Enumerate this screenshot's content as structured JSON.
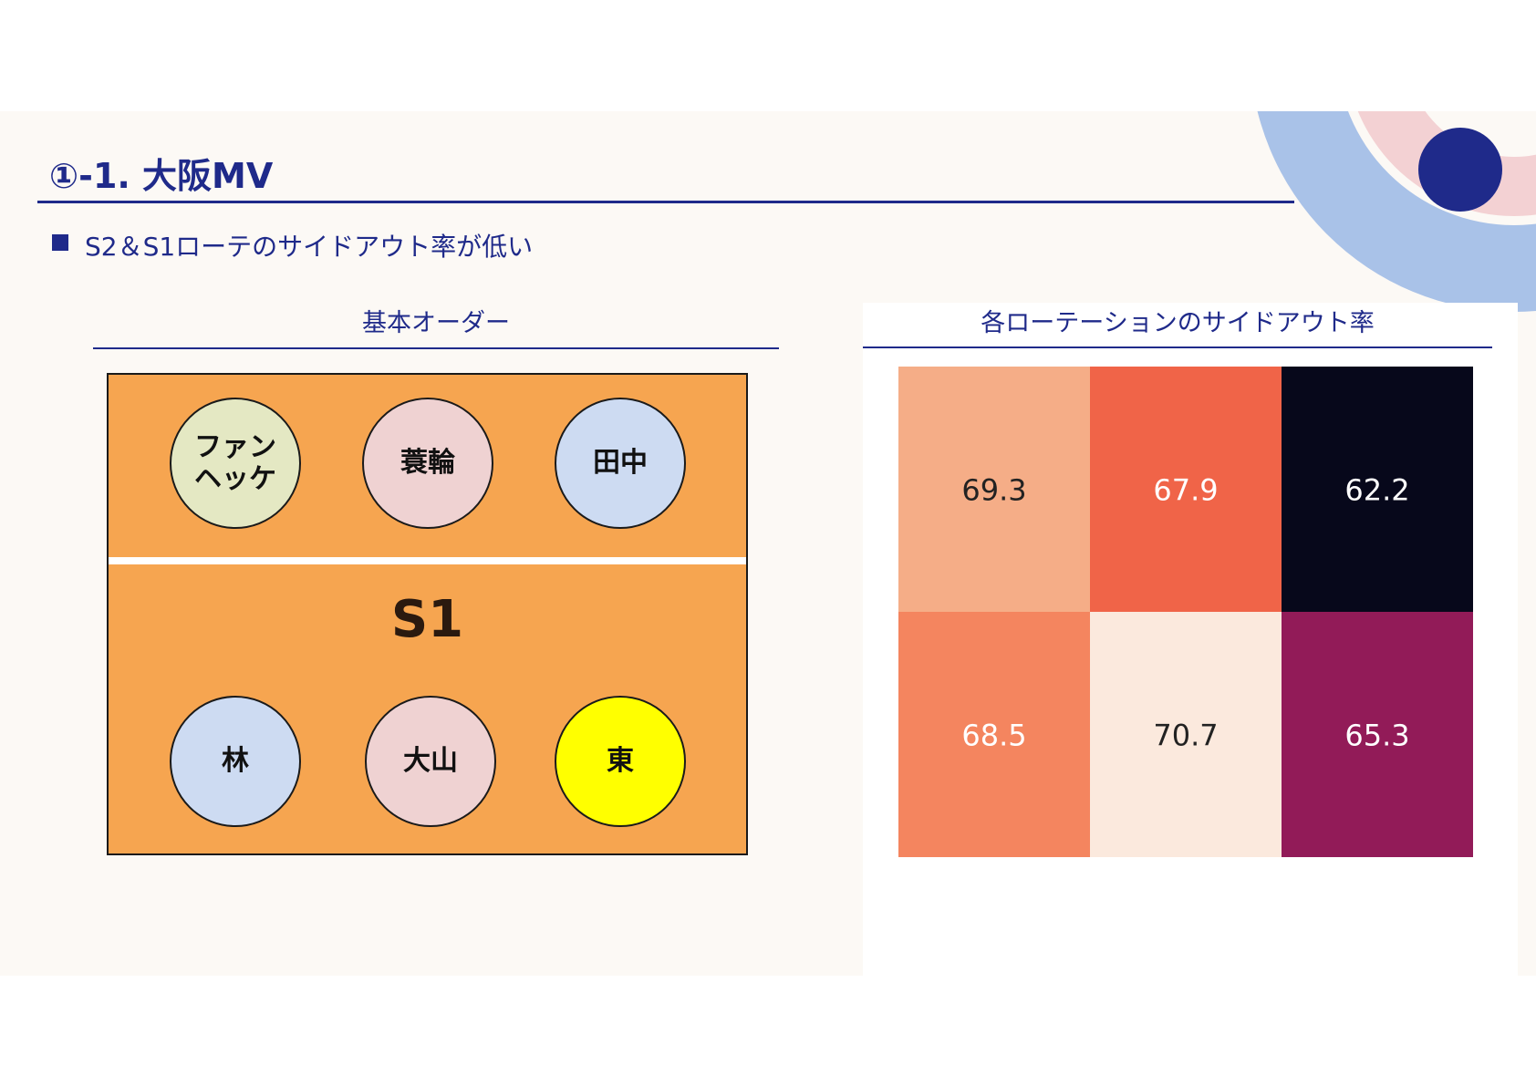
{
  "slide": {
    "title": "①-1. 大阪MV",
    "bullet": "S2＆S1ローテのサイドアウト率が低い"
  },
  "left_panel": {
    "title": "基本オーダー",
    "setter_label": "S1",
    "players_front": [
      "ファン\nヘッケ",
      "蓑輪",
      "田中"
    ],
    "players_back": [
      "林",
      "大山",
      "東"
    ],
    "colors": {
      "court": "#f6a550",
      "player_green": "#e4e8c3",
      "player_pink": "#efd2d2",
      "player_blue": "#cddbf2",
      "player_yellow": "#ffff00"
    }
  },
  "right_panel": {
    "title": "各ローテーションのサイドアウト率"
  },
  "chart_data": {
    "type": "heatmap",
    "title": "各ローテーションのサイドアウト率",
    "rows": 2,
    "cols": 3,
    "values": [
      [
        69.3,
        67.9,
        62.2
      ],
      [
        68.5,
        70.7,
        65.3
      ]
    ],
    "value_format": "one-decimal",
    "colors": [
      [
        "#f5ad87",
        "#f06448",
        "#07081b"
      ],
      [
        "#f4855f",
        "#fbe9dd",
        "#921b58"
      ]
    ],
    "text_colors": [
      [
        "#222222",
        "#ffffff",
        "#ffffff"
      ],
      [
        "#ffffff",
        "#222222",
        "#ffffff"
      ]
    ],
    "colorscale": "rocket",
    "xlabel": "",
    "ylabel": ""
  },
  "theme": {
    "accent": "#1f2a8a",
    "background": "#fcf9f5",
    "deco_ring": "#a9c2e8",
    "deco_pink": "#f3d1d3",
    "deco_dot": "#1f2a8a"
  }
}
